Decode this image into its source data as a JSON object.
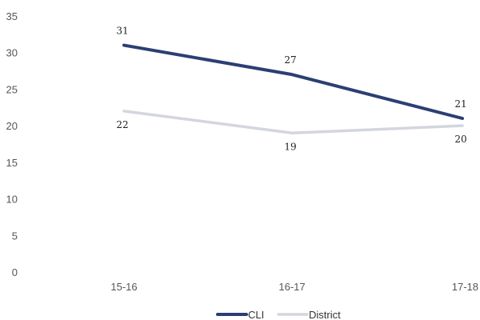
{
  "chart_data": {
    "type": "line",
    "categories": [
      "15-16",
      "16-17",
      "17-18"
    ],
    "series": [
      {
        "name": "CLI",
        "values": [
          31,
          27,
          21
        ],
        "color": "#2b3f73"
      },
      {
        "name": "District",
        "values": [
          22,
          19,
          20
        ],
        "color": "#d3d6de"
      }
    ],
    "ylim": [
      0,
      35
    ],
    "yticks": [
      0,
      5,
      10,
      15,
      20,
      25,
      30,
      35
    ],
    "grid": false,
    "legend_position": "bottom-center"
  }
}
